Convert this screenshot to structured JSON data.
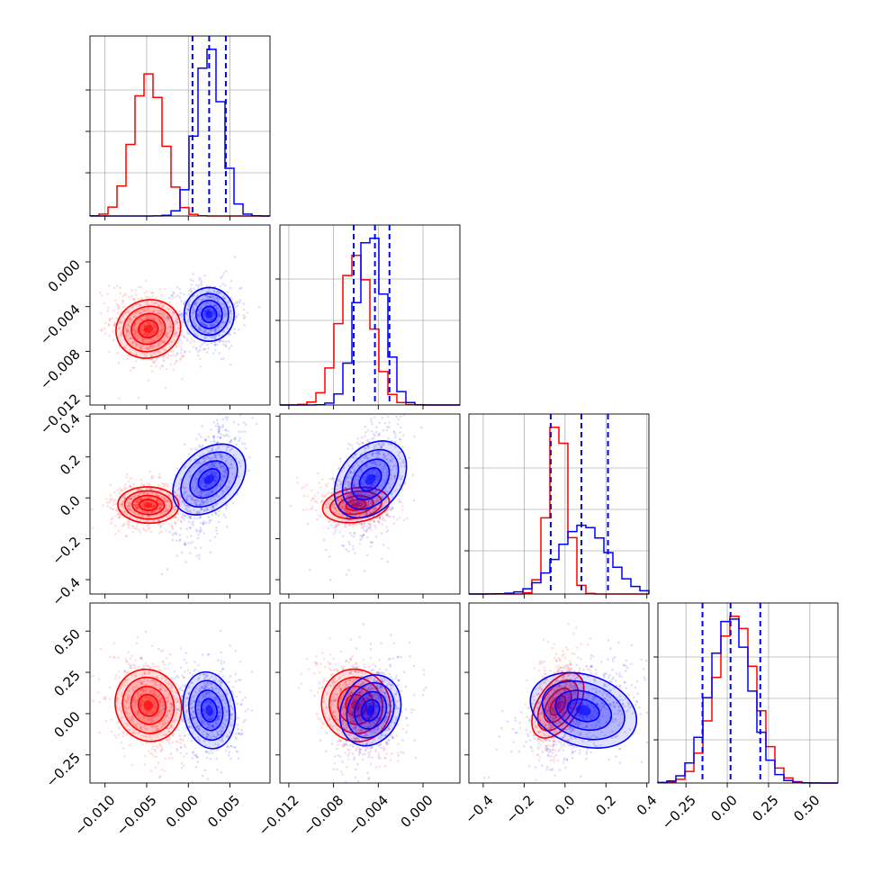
{
  "chart_data": {
    "type": "corner",
    "colors": {
      "series_a": "#ff0000",
      "series_b": "#0000ff",
      "quantile_lines": "#0000ff"
    },
    "parameters": [
      {
        "range": [
          -0.0118,
          0.0098
        ],
        "ticks": [
          -0.01,
          -0.005,
          0.0,
          0.005
        ],
        "tick_labels": [
          "−0.010",
          "−0.005",
          "0.000",
          "0.005"
        ]
      },
      {
        "range": [
          -0.0128,
          0.0033
        ],
        "ticks": [
          -0.012,
          -0.008,
          -0.004,
          0.0
        ],
        "tick_labels": [
          "−0.012",
          "−0.008",
          "−0.004",
          "0.000"
        ]
      },
      {
        "range": [
          -0.47,
          0.41
        ],
        "ticks": [
          -0.4,
          -0.2,
          0.0,
          0.2,
          0.4
        ],
        "tick_labels": [
          "−0.4",
          "−0.2",
          "0.0",
          "0.2",
          "0.4"
        ]
      },
      {
        "range": [
          -0.42,
          0.67
        ],
        "ticks": [
          -0.25,
          0.0,
          0.25,
          0.5
        ],
        "tick_labels": [
          "−0.25",
          "0.00",
          "0.25",
          "0.50"
        ]
      }
    ],
    "series": [
      {
        "color": "#ff0000",
        "mean": [
          -0.0048,
          -0.006,
          -0.035,
          0.05
        ],
        "sd": [
          0.0018,
          0.0014,
          0.045,
          0.12
        ]
      },
      {
        "color": "#0000ff",
        "mean": [
          0.0025,
          -0.0047,
          0.09,
          0.02
        ],
        "sd": [
          0.0015,
          0.0012,
          0.12,
          0.12
        ]
      }
    ],
    "quantiles": [
      [
        0.0005,
        0.0025,
        0.0045
      ],
      [
        -0.0062,
        -0.0043,
        -0.003
      ],
      [
        -0.07,
        0.08,
        0.21
      ],
      [
        -0.15,
        0.02,
        0.2
      ]
    ],
    "grid": true,
    "legend": "none"
  }
}
